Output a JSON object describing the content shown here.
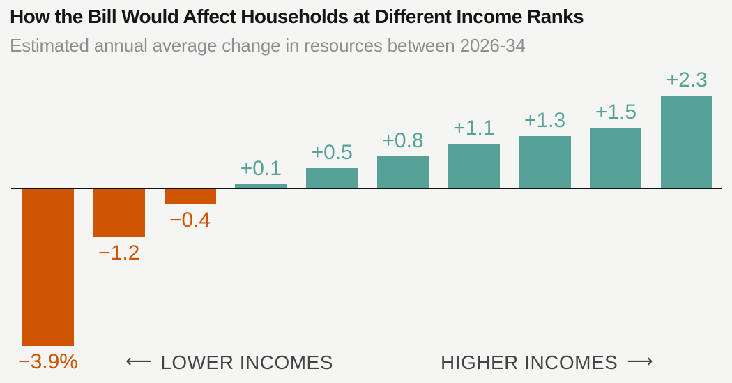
{
  "page": {
    "background_color": "#f5f5f4"
  },
  "header": {
    "title": "How the Bill Would Affect Households at Different Income Ranks",
    "subtitle": "Estimated annual average change in resources between 2026-34"
  },
  "chart_data": {
    "type": "bar",
    "title": "How the Bill Would Affect Households at Different Income Ranks",
    "subtitle": "Estimated annual average change in resources between 2026-34",
    "values": [
      -3.9,
      -1.2,
      -0.4,
      0.1,
      0.5,
      0.8,
      1.1,
      1.3,
      1.5,
      2.3
    ],
    "bar_labels": [
      "−3.9%",
      "−1.2",
      "−0.4",
      "+0.1",
      "+0.5",
      "+0.8",
      "+1.1",
      "+1.3",
      "+1.5",
      "+2.3"
    ],
    "unit": "percent",
    "ylim": [
      -4.2,
      2.6
    ],
    "baseline_value": 0,
    "grid": false,
    "legend": false,
    "negative_color": "#d05502",
    "positive_color": "#56a296",
    "axis_line_color": "#111111",
    "annotations": {
      "left_arrow": "⟵",
      "lower_label": "LOWER INCOMES",
      "higher_label": "HIGHER INCOMES",
      "right_arrow": "⟶"
    }
  }
}
